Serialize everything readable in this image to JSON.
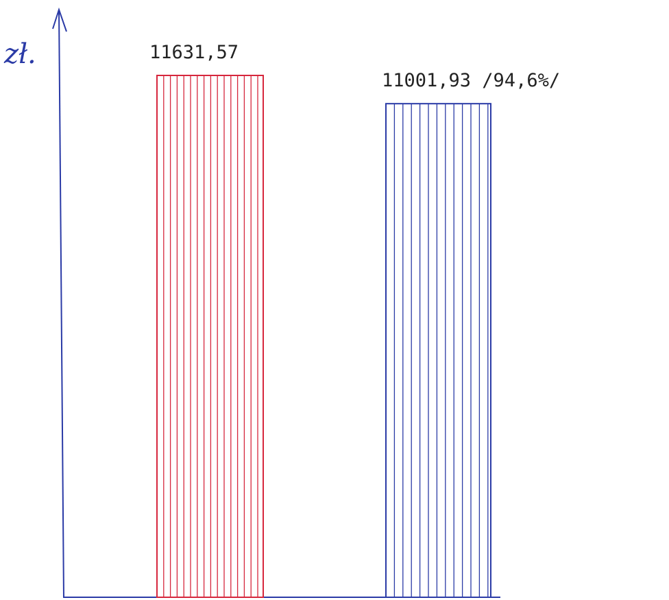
{
  "chart_data": {
    "type": "bar",
    "title": "",
    "ylabel": "zł.",
    "xlabel": "",
    "ylim": [
      0,
      14000
    ],
    "values": [
      11631.57,
      11001.93
    ],
    "data_labels": [
      "11631,57",
      "11001,93 /94,6%/"
    ],
    "bar_colors": [
      "#d6263c",
      "#2a3aa6"
    ],
    "axis_color": "#2a3aa6",
    "bar_style": "vertical hatching",
    "grid": false,
    "legend": "none"
  }
}
